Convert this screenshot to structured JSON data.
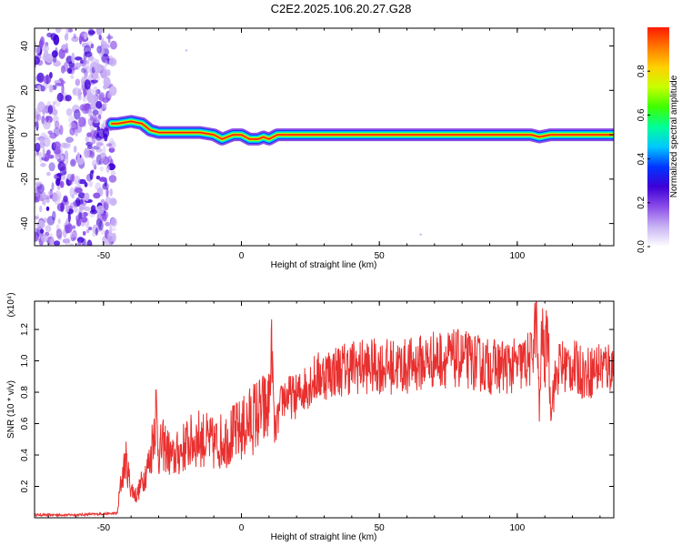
{
  "title": "C2E2.2025.106.20.27.G28",
  "colors": {
    "snr_line": "#e8302f",
    "colormap": [
      "#ffffff",
      "#c9b3f4",
      "#8a4de8",
      "#3d00d6",
      "#0035ff",
      "#00c8ff",
      "#00ff9a",
      "#3dff00",
      "#c8ff00",
      "#ffd000",
      "#ff7a00",
      "#ff1a00"
    ]
  },
  "chart_data": [
    {
      "type": "heatmap",
      "xlabel": "Height of straight line (km)",
      "ylabel": "Frequency (Hz)",
      "xlim": [
        -75,
        135
      ],
      "ylim": [
        -50,
        48
      ],
      "xticks": [
        -50,
        0,
        50,
        100
      ],
      "yticks": [
        -40,
        -20,
        0,
        20,
        40
      ],
      "colorbar": {
        "label": "Normalized spectral amplitude",
        "range": [
          0,
          1
        ],
        "ticks": [
          "0.0",
          "0.2",
          "0.4",
          "0.6",
          "0.8"
        ]
      },
      "noise_region_x": [
        -75,
        -46
      ],
      "ridge": {
        "description_points_x": [
          -47,
          -45,
          -40,
          -36,
          -33,
          -30,
          -25,
          -20,
          -15,
          -10,
          -7,
          -3,
          0,
          3,
          6,
          8,
          10,
          13,
          20,
          105,
          108,
          112,
          135
        ],
        "frequency_hz": [
          5,
          5,
          6,
          5,
          2,
          1,
          1,
          1,
          1,
          0,
          -2,
          0,
          0,
          -2,
          -2,
          -1,
          -2,
          0,
          0,
          0,
          -1,
          0,
          0
        ]
      }
    },
    {
      "type": "line",
      "xlabel": "Height of straight line (km)",
      "ylabel": "SNR (10 * v/v)",
      "y_multiplier": "(x10⁴)",
      "xlim": [
        -75,
        135
      ],
      "ylim": [
        0,
        1.38
      ],
      "xticks": [
        -50,
        0,
        50,
        100
      ],
      "yticks": [
        0.2,
        0.4,
        0.6,
        0.8,
        1.0,
        1.2
      ],
      "series": [
        {
          "x": [
            -75,
            -60,
            -45,
            -44,
            -42,
            -40,
            -38,
            -35,
            -33,
            -31,
            -30,
            -28,
            -25,
            -20,
            -15,
            -10,
            -5,
            0,
            5,
            10,
            11,
            12,
            15,
            20,
            25,
            30,
            40,
            50,
            60,
            70,
            80,
            90,
            100,
            105,
            107,
            108,
            109,
            110,
            111,
            112,
            115,
            120,
            125,
            130,
            135
          ],
          "values": [
            0.02,
            0.02,
            0.03,
            0.2,
            0.4,
            0.2,
            0.15,
            0.3,
            0.4,
            0.75,
            0.45,
            0.5,
            0.4,
            0.5,
            0.55,
            0.5,
            0.55,
            0.6,
            0.7,
            0.75,
            1.15,
            0.55,
            0.8,
            0.8,
            0.9,
            0.95,
            1.0,
            1.0,
            1.0,
            1.05,
            1.05,
            1.0,
            1.0,
            1.05,
            1.32,
            0.7,
            1.25,
            1.0,
            1.3,
            0.75,
            1.0,
            1.0,
            0.95,
            1.0,
            1.0
          ]
        }
      ]
    }
  ]
}
